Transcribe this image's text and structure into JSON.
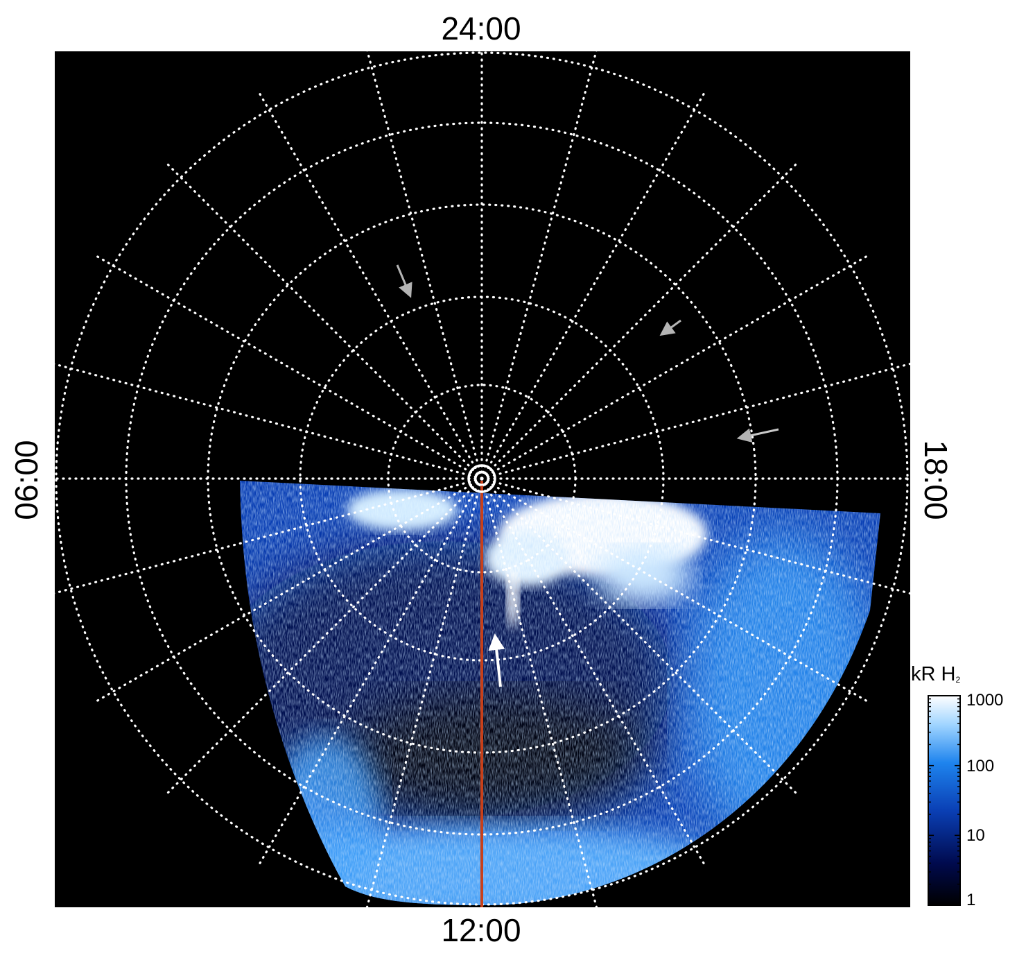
{
  "axis_labels": {
    "top": "24:00",
    "bottom": "12:00",
    "left": "06:00",
    "right": "18:00"
  },
  "colorbar": {
    "title": "kR H",
    "title_subscript": "2",
    "scale": "log",
    "ticks": [
      "1000",
      "100",
      "10",
      "1"
    ]
  },
  "colors": {
    "background": "#000000",
    "grid": "#ffffff",
    "meridian_line": "#c8401a",
    "colormap": [
      "#000000",
      "#000a4e",
      "#0a3fb4",
      "#1e84ee",
      "#9fd4ff",
      "#ffffff"
    ],
    "arrow_gray": "#b4b4b4",
    "arrow_white": "#ffffff"
  }
}
